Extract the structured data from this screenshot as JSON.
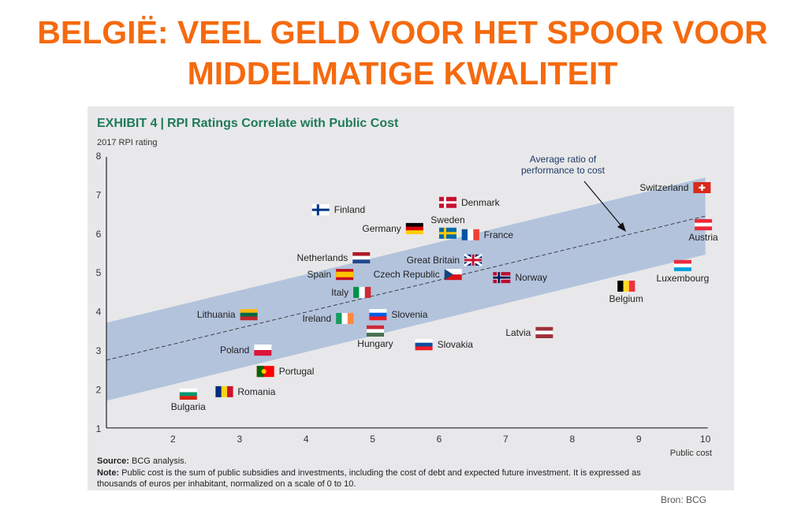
{
  "slide": {
    "title_line1": "BELGIË: VEEL GELD VOOR HET SPOOR VOOR",
    "title_line2": "MIDDELMATIGE KWALITEIT",
    "source_credit": "Bron: BCG",
    "title_color": "#f56a0f"
  },
  "chart_data": {
    "type": "scatter",
    "exhibit_label": "EXHIBIT 4",
    "title": "RPI Ratings Correlate with Public Cost",
    "ylabel": "2017 RPI rating",
    "xlabel": "Public cost",
    "xlim": [
      1,
      10
    ],
    "ylim": [
      1,
      8
    ],
    "xticks": [
      2,
      3,
      4,
      5,
      6,
      7,
      8,
      9,
      10
    ],
    "yticks": [
      1,
      2,
      3,
      4,
      5,
      6,
      7,
      8
    ],
    "grid": false,
    "band": {
      "x": [
        1,
        10
      ],
      "lower": [
        1.7,
        5.45
      ],
      "upper": [
        3.7,
        7.43
      ],
      "color": "#b3c3dc"
    },
    "trend_line": {
      "x": [
        1,
        10
      ],
      "y": [
        2.74,
        6.44
      ],
      "style": "dashed",
      "annotation": [
        "Average ratio of",
        "performance to cost"
      ]
    },
    "source_label": "Source:",
    "source_text": " BCG analysis.",
    "note_label": "Note:",
    "note_text_line1": " Public cost is the sum of public subsidies and investments, including the cost of debt and expected future investment. It is expressed as",
    "note_text_line2": "thousands of euros per inhabitant, normalized on a scale of 0 to 10.",
    "title_color": "#1f7a5a",
    "points": [
      {
        "name": "Bulgaria",
        "x": 2.23,
        "y": 1.87,
        "label": "below",
        "flag": "h",
        "colors": [
          "#ffffff",
          "#00966e",
          "#d62612"
        ]
      },
      {
        "name": "Romania",
        "x": 2.77,
        "y": 1.93,
        "label": "right",
        "flag": "v",
        "colors": [
          "#002b7f",
          "#fcd116",
          "#ce1126"
        ]
      },
      {
        "name": "Portugal",
        "x": 3.39,
        "y": 2.45,
        "label": "right",
        "flag": "pt",
        "colors": [
          "#006600",
          "#ff0000",
          "#ffcc00"
        ]
      },
      {
        "name": "Poland",
        "x": 3.35,
        "y": 3.0,
        "label": "left",
        "flag": "h",
        "colors": [
          "#ffffff",
          "#dc143c"
        ]
      },
      {
        "name": "Lithuania",
        "x": 3.14,
        "y": 3.91,
        "label": "left",
        "flag": "h",
        "colors": [
          "#fdb913",
          "#006a44",
          "#c1272d"
        ]
      },
      {
        "name": "Ireland",
        "x": 4.58,
        "y": 3.81,
        "label": "left",
        "flag": "v",
        "colors": [
          "#169b62",
          "#ffffff",
          "#ff883e"
        ]
      },
      {
        "name": "Italy",
        "x": 4.84,
        "y": 4.48,
        "label": "left",
        "flag": "v",
        "colors": [
          "#009246",
          "#ffffff",
          "#ce2b37"
        ]
      },
      {
        "name": "Spain",
        "x": 4.58,
        "y": 4.94,
        "label": "left",
        "flag": "es",
        "colors": [
          "#c60b1e",
          "#ffc400",
          "#c60b1e"
        ]
      },
      {
        "name": "Netherlands",
        "x": 4.83,
        "y": 5.37,
        "label": "left",
        "flag": "h",
        "colors": [
          "#ae1c28",
          "#ffffff",
          "#21468b"
        ]
      },
      {
        "name": "Finland",
        "x": 4.22,
        "y": 6.6,
        "label": "right",
        "flag": "nordic",
        "colors": [
          "#ffffff",
          "#003580"
        ]
      },
      {
        "name": "Germany",
        "x": 5.63,
        "y": 6.12,
        "label": "left",
        "flag": "h",
        "colors": [
          "#000000",
          "#dd0000",
          "#ffce00"
        ]
      },
      {
        "name": "Sweden",
        "x": 6.13,
        "y": 6.0,
        "label": "above",
        "flag": "nordic",
        "colors": [
          "#006aa7",
          "#fecc00"
        ]
      },
      {
        "name": "France",
        "x": 6.47,
        "y": 5.96,
        "label": "right",
        "flag": "v",
        "colors": [
          "#0055a4",
          "#ffffff",
          "#ef4135"
        ]
      },
      {
        "name": "Denmark",
        "x": 6.13,
        "y": 6.79,
        "label": "right",
        "flag": "nordic",
        "colors": [
          "#c8102e",
          "#ffffff"
        ]
      },
      {
        "name": "Great Britain",
        "x": 6.51,
        "y": 5.31,
        "label": "left",
        "flag": "gb",
        "colors": [
          "#012169",
          "#ffffff",
          "#c8102e"
        ]
      },
      {
        "name": "Czech Republic",
        "x": 6.21,
        "y": 4.94,
        "label": "left",
        "flag": "cz",
        "colors": [
          "#ffffff",
          "#d7141a",
          "#11457e"
        ]
      },
      {
        "name": "Norway",
        "x": 6.94,
        "y": 4.86,
        "label": "right",
        "flag": "nordic",
        "colors": [
          "#ba0c2f",
          "#00205b"
        ]
      },
      {
        "name": "Slovenia",
        "x": 5.08,
        "y": 3.91,
        "label": "right",
        "flag": "h",
        "colors": [
          "#ffffff",
          "#005ce5",
          "#ed1c24"
        ]
      },
      {
        "name": "Hungary",
        "x": 5.04,
        "y": 3.49,
        "label": "below",
        "flag": "h",
        "colors": [
          "#ce2939",
          "#ffffff",
          "#477050"
        ]
      },
      {
        "name": "Slovakia",
        "x": 5.77,
        "y": 3.14,
        "label": "right",
        "flag": "h",
        "colors": [
          "#ffffff",
          "#0b4ea2",
          "#ee1c25"
        ]
      },
      {
        "name": "Latvia",
        "x": 7.58,
        "y": 3.45,
        "label": "left",
        "flag": "h",
        "colors": [
          "#9e3039",
          "#ffffff",
          "#9e3039"
        ]
      },
      {
        "name": "Belgium",
        "x": 8.81,
        "y": 4.64,
        "label": "below",
        "flag": "v",
        "colors": [
          "#000000",
          "#fdda24",
          "#ef3340"
        ]
      },
      {
        "name": "Luxembourg",
        "x": 9.66,
        "y": 5.17,
        "label": "below",
        "flag": "h",
        "colors": [
          "#ed2939",
          "#ffffff",
          "#00a1de"
        ]
      },
      {
        "name": "Austria",
        "x": 9.97,
        "y": 6.22,
        "label": "below",
        "flag": "h",
        "colors": [
          "#ed2939",
          "#ffffff",
          "#ed2939"
        ]
      },
      {
        "name": "Switzerland",
        "x": 9.95,
        "y": 7.17,
        "label": "left",
        "flag": "ch",
        "colors": [
          "#da291c",
          "#ffffff"
        ]
      }
    ]
  }
}
